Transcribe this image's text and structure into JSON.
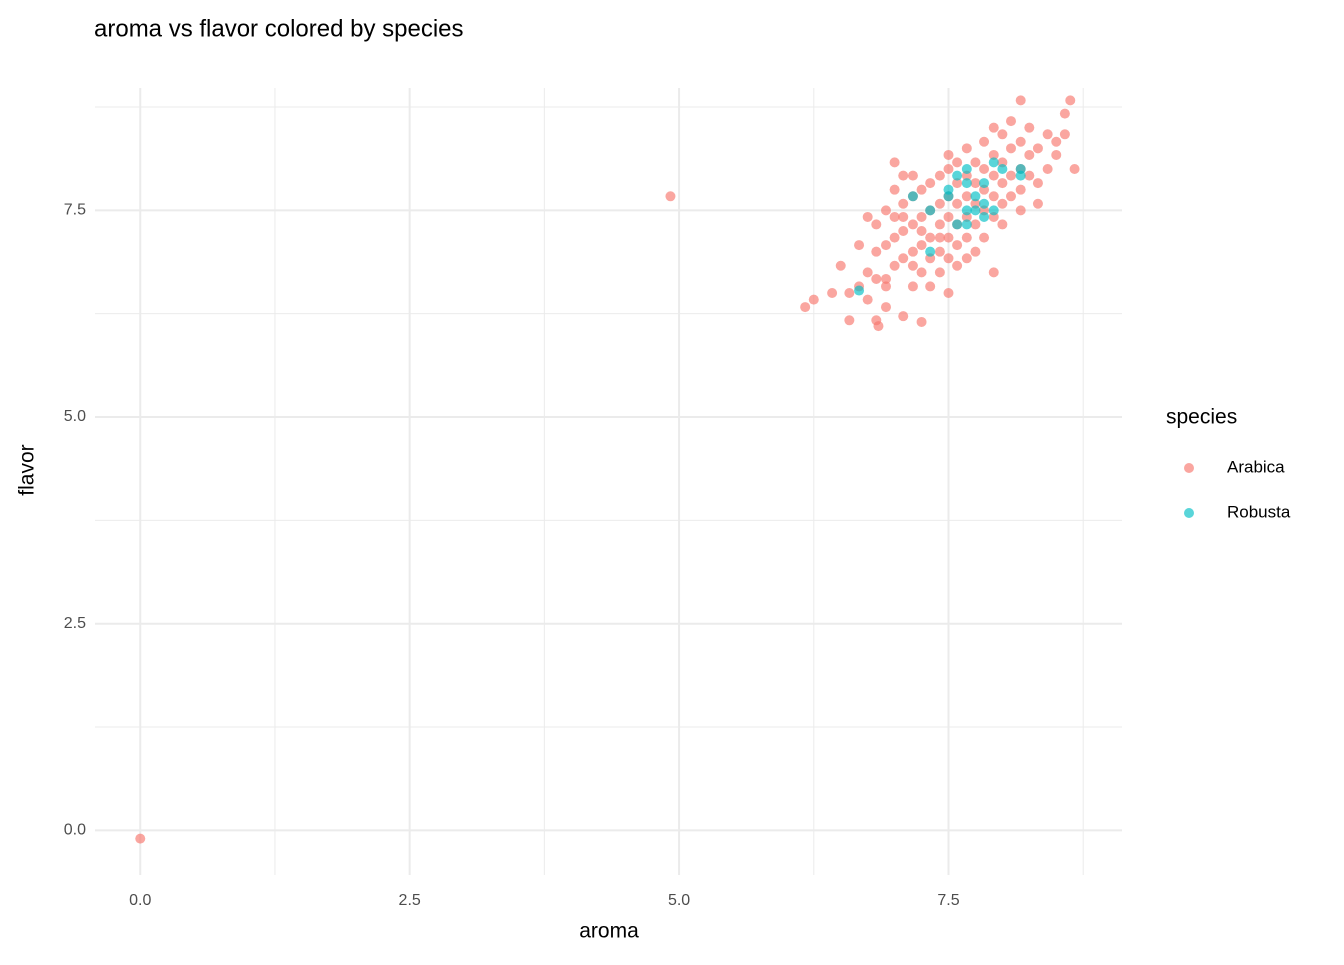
{
  "chart_data": {
    "type": "scatter",
    "title": "aroma vs flavor colored by species",
    "x_label": "aroma",
    "y_label": "flavor",
    "legend_title": "species",
    "legend": "right",
    "grid": true,
    "xlim": [
      -0.42,
      9.11
    ],
    "ylim": [
      -0.54,
      8.98
    ],
    "xticks": [
      {
        "value": 0,
        "label": "0.0"
      },
      2.5,
      {
        "value": 5,
        "label": "5.0"
      },
      7.5
    ],
    "yticks": [
      {
        "value": 0,
        "label": "0.0"
      },
      2.5,
      {
        "value": 5,
        "label": "5.0"
      },
      7.5
    ],
    "series": [
      {
        "name": "Arabica",
        "color": "#F8766D",
        "x": [
          0,
          4.92,
          6.17,
          6.25,
          6.42,
          6.5,
          6.58,
          6.58,
          6.67,
          6.67,
          6.75,
          6.75,
          6.75,
          6.83,
          6.83,
          6.83,
          6.83,
          6.85,
          6.92,
          6.92,
          6.92,
          6.92,
          7.0,
          7.0,
          7.0,
          7.0,
          7.0,
          7.08,
          7.08,
          7.08,
          7.08,
          7.08,
          7.17,
          7.17,
          7.17,
          7.17,
          7.17,
          7.17,
          7.25,
          7.25,
          7.25,
          7.25,
          7.25,
          7.33,
          7.33,
          7.33,
          7.33,
          7.33,
          7.42,
          7.42,
          7.42,
          7.42,
          7.42,
          7.5,
          7.5,
          7.5,
          7.5,
          7.5,
          7.5,
          7.5,
          7.58,
          7.58,
          7.58,
          7.58,
          7.58,
          7.58,
          7.67,
          7.67,
          7.67,
          7.67,
          7.67,
          7.67,
          7.75,
          7.75,
          7.75,
          7.75,
          7.75,
          7.83,
          7.83,
          7.83,
          7.83,
          7.83,
          7.92,
          7.92,
          7.92,
          7.92,
          7.92,
          7.92,
          8.0,
          8.0,
          8.0,
          8.0,
          8.0,
          8.08,
          8.08,
          8.08,
          8.08,
          8.17,
          8.17,
          8.17,
          8.17,
          8.17,
          8.25,
          8.25,
          8.25,
          8.33,
          8.33,
          8.33,
          8.42,
          8.42,
          8.5,
          8.5,
          8.58,
          8.58,
          8.63,
          8.67,
          6.92,
          7.08,
          7.25,
          7.42
        ],
        "y": [
          -0.1,
          7.67,
          6.33,
          6.42,
          6.5,
          6.83,
          6.17,
          6.5,
          6.58,
          7.08,
          6.42,
          6.75,
          7.42,
          6.17,
          6.67,
          7.0,
          7.33,
          6.1,
          6.33,
          6.67,
          7.08,
          7.5,
          6.83,
          7.17,
          7.42,
          7.75,
          8.08,
          6.22,
          6.92,
          7.25,
          7.58,
          7.92,
          6.58,
          6.83,
          7.0,
          7.33,
          7.67,
          7.92,
          6.15,
          6.75,
          7.08,
          7.42,
          7.75,
          6.58,
          6.92,
          7.17,
          7.5,
          7.83,
          6.75,
          7.0,
          7.33,
          7.58,
          7.92,
          6.5,
          6.92,
          7.17,
          7.42,
          7.67,
          8.0,
          8.17,
          6.83,
          7.08,
          7.33,
          7.58,
          7.83,
          8.08,
          6.92,
          7.17,
          7.42,
          7.67,
          7.92,
          8.25,
          7.0,
          7.33,
          7.58,
          7.83,
          8.08,
          7.17,
          7.5,
          7.75,
          8.0,
          8.33,
          6.75,
          7.42,
          7.67,
          7.92,
          8.17,
          8.5,
          7.33,
          7.58,
          7.83,
          8.08,
          8.42,
          7.67,
          7.92,
          8.25,
          8.58,
          7.5,
          7.75,
          8.0,
          8.33,
          8.83,
          7.92,
          8.17,
          8.5,
          7.58,
          7.83,
          8.25,
          8.0,
          8.42,
          8.17,
          8.33,
          8.67,
          8.42,
          8.83,
          8.0,
          6.58,
          7.42,
          7.25,
          7.17
        ]
      },
      {
        "name": "Robusta",
        "color": "#00BFC4",
        "x": [
          6.67,
          7.17,
          7.33,
          7.33,
          7.5,
          7.5,
          7.58,
          7.58,
          7.67,
          7.67,
          7.67,
          7.75,
          7.75,
          7.83,
          7.83,
          7.83,
          7.92,
          7.92,
          8.0,
          8.17,
          8.17,
          7.67
        ],
        "y": [
          6.53,
          7.67,
          7.5,
          7.0,
          7.67,
          7.75,
          7.33,
          7.92,
          7.5,
          7.83,
          8.0,
          7.5,
          7.67,
          7.42,
          7.58,
          7.83,
          7.5,
          8.08,
          8.0,
          7.92,
          8.0,
          7.33
        ]
      }
    ]
  }
}
